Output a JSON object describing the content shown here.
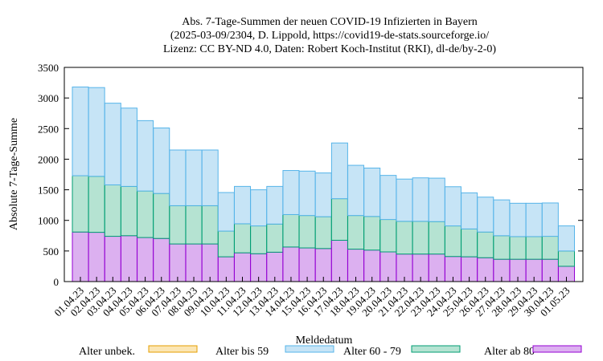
{
  "chart_data": {
    "type": "bar",
    "title_lines": [
      "Abs. 7-Tage-Summen der neuen COVID-19 Infizierten in Bayern",
      "(2025-03-09/2304, D. Lippold, https://covid19-de-stats.sourceforge.io/",
      "Lizenz: CC BY-ND 4.0, Daten: Robert Koch-Institut (RKI), dl-de/by-2-0)"
    ],
    "xlabel": "Meldedatum",
    "ylabel": "Absolute 7-Tage-Summe",
    "ylim": [
      0,
      3500
    ],
    "yticks": [
      0,
      500,
      1000,
      1500,
      2000,
      2500,
      3000,
      3500
    ],
    "stacked": true,
    "categories": [
      "01.04.23",
      "02.04.23",
      "03.04.23",
      "04.04.23",
      "05.04.23",
      "06.04.23",
      "07.04.23",
      "08.04.23",
      "09.04.23",
      "10.04.23",
      "11.04.23",
      "12.04.23",
      "13.04.23",
      "14.04.23",
      "15.04.23",
      "16.04.23",
      "17.04.23",
      "18.04.23",
      "19.04.23",
      "20.04.23",
      "21.04.23",
      "22.04.23",
      "23.04.23",
      "24.04.23",
      "25.04.23",
      "26.04.23",
      "27.04.23",
      "28.04.23",
      "29.04.23",
      "30.04.23",
      "01.05.23"
    ],
    "series": [
      {
        "name": "Alter ab 80",
        "color": "#dcb0f0",
        "edge": "#9400d3",
        "values": [
          810,
          805,
          740,
          750,
          720,
          705,
          615,
          615,
          615,
          405,
          470,
          455,
          480,
          565,
          550,
          540,
          675,
          530,
          515,
          485,
          450,
          450,
          450,
          410,
          405,
          390,
          365,
          365,
          365,
          365,
          250
        ]
      },
      {
        "name": "Alter 60 - 79",
        "color": "#b5e3d2",
        "edge": "#009e73",
        "values": [
          920,
          915,
          840,
          805,
          760,
          735,
          625,
          625,
          625,
          420,
          475,
          455,
          460,
          530,
          530,
          520,
          680,
          550,
          550,
          530,
          535,
          535,
          530,
          500,
          455,
          420,
          385,
          370,
          370,
          375,
          250
        ]
      },
      {
        "name": "Alter bis 59",
        "color": "#c6e4f6",
        "edge": "#56b4e9",
        "values": [
          1450,
          1450,
          1335,
          1280,
          1150,
          1070,
          910,
          910,
          910,
          630,
          610,
          590,
          615,
          720,
          725,
          715,
          910,
          820,
          790,
          720,
          690,
          710,
          710,
          640,
          590,
          570,
          585,
          545,
          545,
          545,
          410
        ]
      },
      {
        "name": "Alter unbek.",
        "color": "#fbe6b4",
        "edge": "#e69f00",
        "values": [
          0,
          0,
          0,
          0,
          0,
          0,
          0,
          0,
          0,
          0,
          0,
          0,
          0,
          0,
          0,
          0,
          0,
          0,
          0,
          0,
          0,
          0,
          0,
          0,
          0,
          0,
          0,
          0,
          0,
          0,
          0
        ]
      }
    ],
    "legend_order": [
      "Alter unbek.",
      "Alter bis 59",
      "Alter 60 - 79",
      "Alter ab 80"
    ],
    "legend_position": "bottom",
    "grid": false
  }
}
